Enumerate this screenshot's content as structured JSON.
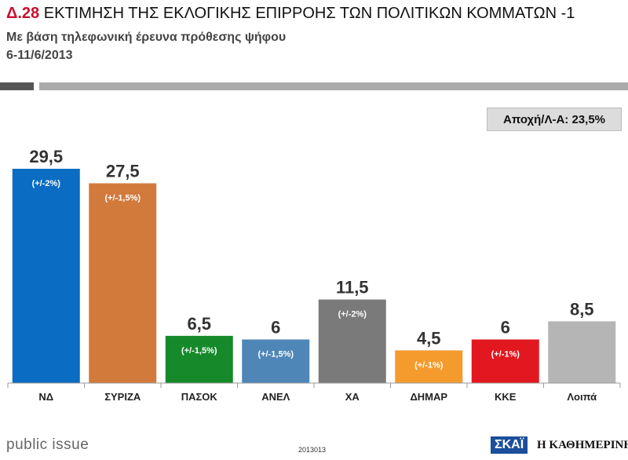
{
  "header": {
    "code": "Δ.28",
    "title": "ΕΚΤΙΜΗΣΗ ΤΗΣ ΕΚΛΟΓΙΚΗΣ ΕΠΙΡΡΟΗΣ ΤΩΝ ΠΟΛΙΤΙΚΩΝ ΚΟΜΜΑΤΩΝ -1",
    "subtitle": "Με βάση τηλεφωνική έρευνα πρόθεσης ψήφου",
    "date": "6-11/6/2013"
  },
  "abstention": "Αποχή/Λ-Α: 23,5%",
  "chart_data": {
    "type": "bar",
    "categories": [
      "ΝΔ",
      "ΣΥΡΙΖΑ",
      "ΠΑΣΟΚ",
      "ΑΝΕΛ",
      "ΧΑ",
      "ΔΗΜΑΡ",
      "ΚΚΕ",
      "Λοιπά"
    ],
    "values": [
      29.5,
      27.5,
      6.5,
      6,
      11.5,
      4.5,
      6,
      8.5
    ],
    "value_labels": [
      "29,5",
      "27,5",
      "6,5",
      "6",
      "11,5",
      "4,5",
      "6",
      "8,5"
    ],
    "margins": [
      "(+/-2%)",
      "(+/-1,5%)",
      "(+/-1,5%)",
      "(+/-1,5%)",
      "(+/-2%)",
      "(+/-1%)",
      "(+/-1%)",
      ""
    ],
    "colors": [
      "#0a6cc2",
      "#d27a3c",
      "#168a2a",
      "#4f86b8",
      "#7a7a7a",
      "#f59b2e",
      "#e2171f",
      "#b5b5b5"
    ],
    "ylim": [
      0,
      32
    ],
    "grid": false,
    "legend": "none"
  },
  "footer": {
    "brand": "public issue",
    "code": "2013013",
    "logo_skai": "ΣΚΑΪ",
    "logo_kathimerini": "Η ΚΑΘΗΜΕΡΙΝΗ"
  }
}
